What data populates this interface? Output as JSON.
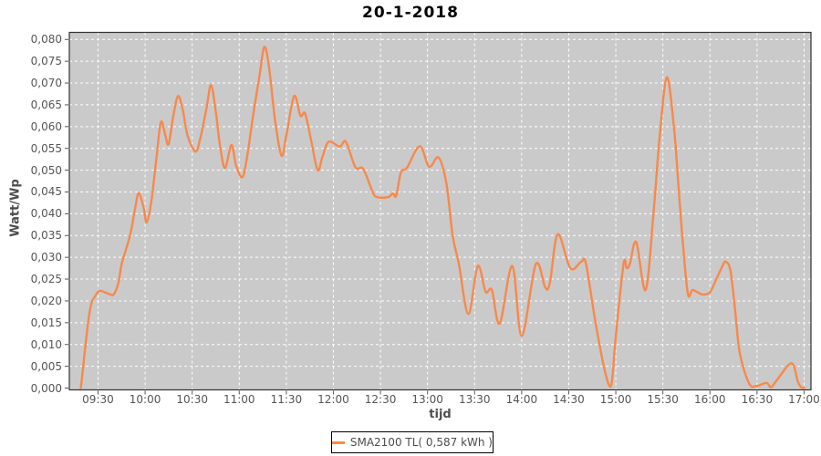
{
  "chart_data": {
    "type": "line",
    "title": "20-1-2018",
    "xlabel": "tijd",
    "ylabel": "Watt/Wp",
    "grid": true,
    "plot_bg": "#CACACA",
    "grid_color": "#FFFFFF",
    "axis_border_color": "#333333",
    "tick_color": "#555555",
    "x_tick_labels": [
      "09:30",
      "10:00",
      "10:30",
      "11:00",
      "11:30",
      "12:00",
      "12:30",
      "13:00",
      "13:30",
      "14:00",
      "14:30",
      "15:00",
      "15:30",
      "16:00",
      "16:30",
      "17:00"
    ],
    "x_tick_hours": [
      9.5,
      10,
      10.5,
      11,
      11.5,
      12,
      12.5,
      13,
      13.5,
      14,
      14.5,
      15,
      15.5,
      16,
      16.5,
      17
    ],
    "y_tick_labels": [
      "0,000",
      "0,005",
      "0,010",
      "0,015",
      "0,020",
      "0,025",
      "0,030",
      "0,035",
      "0,040",
      "0,045",
      "0,050",
      "0,055",
      "0,060",
      "0,065",
      "0,070",
      "0,075",
      "0,080"
    ],
    "y_tick_values": [
      0,
      0.005,
      0.01,
      0.015,
      0.02,
      0.025,
      0.03,
      0.035,
      0.04,
      0.045,
      0.05,
      0.055,
      0.06,
      0.065,
      0.07,
      0.075,
      0.08
    ],
    "xlim_hours": [
      9.195,
      17.073
    ],
    "ylim": [
      0,
      0.0816
    ],
    "series": [
      {
        "name": "SMA2100 TL( 0,587 kWh )",
        "color": "#F7894C",
        "points": [
          [
            9.317,
            0.0
          ],
          [
            9.333,
            0.003
          ],
          [
            9.367,
            0.01
          ],
          [
            9.4,
            0.016
          ],
          [
            9.433,
            0.0197
          ],
          [
            9.467,
            0.021
          ],
          [
            9.5,
            0.0221
          ],
          [
            9.533,
            0.0223
          ],
          [
            9.617,
            0.0216
          ],
          [
            9.667,
            0.0215
          ],
          [
            9.717,
            0.0242
          ],
          [
            9.75,
            0.0284
          ],
          [
            9.8,
            0.032
          ],
          [
            9.85,
            0.036
          ],
          [
            9.9,
            0.042
          ],
          [
            9.933,
            0.0447
          ],
          [
            9.983,
            0.0415
          ],
          [
            10.017,
            0.038
          ],
          [
            10.067,
            0.043
          ],
          [
            10.117,
            0.052
          ],
          [
            10.167,
            0.061
          ],
          [
            10.217,
            0.0578
          ],
          [
            10.25,
            0.056
          ],
          [
            10.3,
            0.0625
          ],
          [
            10.35,
            0.067
          ],
          [
            10.4,
            0.0638
          ],
          [
            10.45,
            0.058
          ],
          [
            10.533,
            0.0543
          ],
          [
            10.583,
            0.057
          ],
          [
            10.65,
            0.064
          ],
          [
            10.7,
            0.0695
          ],
          [
            10.75,
            0.0635
          ],
          [
            10.8,
            0.055
          ],
          [
            10.85,
            0.0505
          ],
          [
            10.917,
            0.0558
          ],
          [
            10.967,
            0.051
          ],
          [
            11.033,
            0.0484
          ],
          [
            11.083,
            0.053
          ],
          [
            11.15,
            0.063
          ],
          [
            11.217,
            0.072
          ],
          [
            11.267,
            0.0783
          ],
          [
            11.317,
            0.0735
          ],
          [
            11.383,
            0.061
          ],
          [
            11.45,
            0.0533
          ],
          [
            11.5,
            0.058
          ],
          [
            11.583,
            0.067
          ],
          [
            11.65,
            0.0625
          ],
          [
            11.7,
            0.063
          ],
          [
            11.767,
            0.0565
          ],
          [
            11.833,
            0.05
          ],
          [
            11.883,
            0.053
          ],
          [
            11.95,
            0.0565
          ],
          [
            12.067,
            0.0554
          ],
          [
            12.133,
            0.0565
          ],
          [
            12.233,
            0.0507
          ],
          [
            12.317,
            0.0503
          ],
          [
            12.417,
            0.045
          ],
          [
            12.467,
            0.0438
          ],
          [
            12.583,
            0.0438
          ],
          [
            12.633,
            0.0447
          ],
          [
            12.667,
            0.0441
          ],
          [
            12.717,
            0.0495
          ],
          [
            12.783,
            0.0506
          ],
          [
            12.917,
            0.0555
          ],
          [
            13.017,
            0.0508
          ],
          [
            13.117,
            0.0529
          ],
          [
            13.2,
            0.047
          ],
          [
            13.267,
            0.035
          ],
          [
            13.333,
            0.0285
          ],
          [
            13.433,
            0.017
          ],
          [
            13.533,
            0.028
          ],
          [
            13.617,
            0.0221
          ],
          [
            13.683,
            0.0225
          ],
          [
            13.767,
            0.0148
          ],
          [
            13.9,
            0.028
          ],
          [
            14.0,
            0.012
          ],
          [
            14.15,
            0.0284
          ],
          [
            14.25,
            0.0231
          ],
          [
            14.3,
            0.0242
          ],
          [
            14.383,
            0.0353
          ],
          [
            14.517,
            0.0275
          ],
          [
            14.633,
            0.029
          ],
          [
            14.683,
            0.0285
          ],
          [
            14.783,
            0.0152
          ],
          [
            14.883,
            0.004
          ],
          [
            14.95,
            0.0005
          ],
          [
            15.0,
            0.012
          ],
          [
            15.083,
            0.0285
          ],
          [
            15.117,
            0.0275
          ],
          [
            15.15,
            0.0285
          ],
          [
            15.217,
            0.0335
          ],
          [
            15.317,
            0.0225
          ],
          [
            15.4,
            0.04
          ],
          [
            15.467,
            0.058
          ],
          [
            15.542,
            0.0713
          ],
          [
            15.617,
            0.06
          ],
          [
            15.667,
            0.046
          ],
          [
            15.717,
            0.032
          ],
          [
            15.767,
            0.0215
          ],
          [
            15.817,
            0.0225
          ],
          [
            15.917,
            0.0215
          ],
          [
            16.0,
            0.022
          ],
          [
            16.067,
            0.025
          ],
          [
            16.133,
            0.028
          ],
          [
            16.167,
            0.029
          ],
          [
            16.217,
            0.027
          ],
          [
            16.267,
            0.018
          ],
          [
            16.317,
            0.008
          ],
          [
            16.417,
            0.001
          ],
          [
            16.5,
            0.0005
          ],
          [
            16.6,
            0.0012
          ],
          [
            16.65,
            0.0002
          ],
          [
            16.717,
            0.002
          ],
          [
            16.867,
            0.0057
          ],
          [
            16.933,
            0.0015
          ],
          [
            16.967,
            0.0002
          ],
          [
            17.0,
            0.0
          ]
        ]
      }
    ],
    "legend_position": "bottom-center"
  },
  "legend": {
    "label": "SMA2100 TL( 0,587 kWh )"
  }
}
